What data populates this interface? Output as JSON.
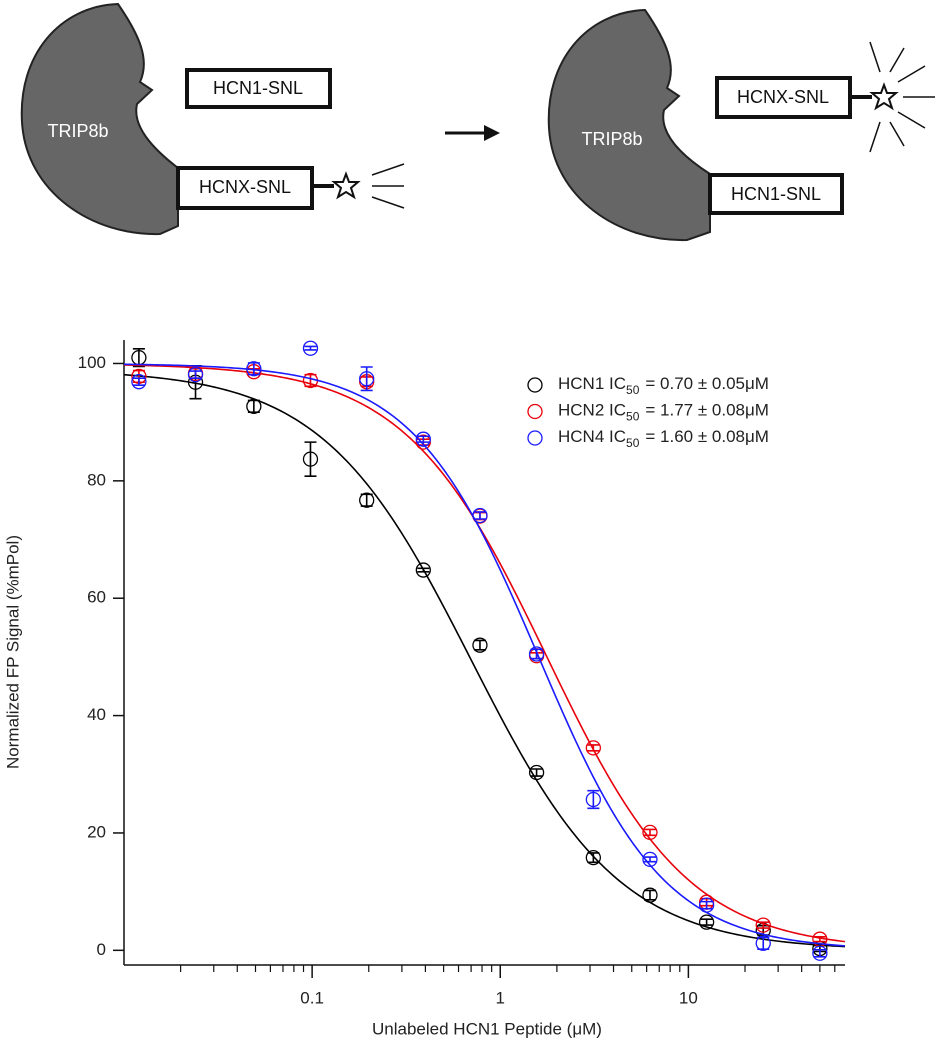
{
  "diagram": {
    "left": {
      "protein": "TRIP8b",
      "free_peptide": "HCN1-SNL",
      "bound_peptide": "HCNX-SNL"
    },
    "right": {
      "protein": "TRIP8b",
      "free_peptide": "HCNX-SNL",
      "bound_peptide": "HCN1-SNL"
    }
  },
  "chart_data": {
    "type": "scatter",
    "x_label": "Unlabeled HCN1 Peptide (μM)",
    "y_label": "Normalized FP Signal (%mPol)",
    "x_scale": "log",
    "xlim": [
      0.01,
      68
    ],
    "xticks": [
      0.1,
      1,
      10
    ],
    "xminorticks": [
      0.02,
      0.03,
      0.04,
      0.05,
      0.06,
      0.07,
      0.08,
      0.09,
      0.2,
      0.3,
      0.4,
      0.5,
      0.6,
      0.7,
      0.8,
      0.9,
      2,
      3,
      4,
      5,
      6,
      7,
      8,
      9,
      20,
      30,
      40,
      50,
      60
    ],
    "ylim": [
      -2.5,
      104
    ],
    "yticks": [
      0,
      20,
      40,
      60,
      80,
      100
    ],
    "legend": "upper right",
    "x": [
      0.012,
      0.024,
      0.049,
      0.098,
      0.195,
      0.39,
      0.78,
      1.56,
      3.125,
      6.25,
      12.5,
      25,
      50
    ],
    "series": [
      {
        "name": "HCN1 IC",
        "name_subscript": "50",
        "name_suffix": "= 0.70 ± 0.05μM",
        "color": "#000000",
        "values": [
          101.0,
          96.8,
          92.7,
          83.7,
          76.7,
          64.8,
          52.0,
          30.3,
          15.8,
          9.4,
          4.8,
          3.4,
          0.3
        ],
        "errors": [
          1.5,
          2.8,
          1,
          2.9,
          1,
          0.3,
          0.8,
          0.6,
          0.8,
          0.8,
          0.5,
          0.8,
          0.5
        ],
        "fit": {
          "top": 99,
          "bottom": 0,
          "ic50": 0.7,
          "hill": 1.1
        }
      },
      {
        "name": "HCN2 IC",
        "name_subscript": "50",
        "name_suffix": "= 1.77 ± 0.08μM",
        "color": "#e8000b",
        "values": [
          97.8,
          98.3,
          98.6,
          97.1,
          96.9,
          86.6,
          74.0,
          50.2,
          34.5,
          20.1,
          8.2,
          4.3,
          1.9
        ],
        "errors": [
          1,
          0.8,
          0.5,
          1,
          0.8,
          0.5,
          0.6,
          0.5,
          0.5,
          0.5,
          0.6,
          0.5,
          0.4
        ],
        "fit": {
          "top": 100,
          "bottom": 0,
          "ic50": 1.77,
          "hill": 1.15
        }
      },
      {
        "name": "HCN4 IC",
        "name_subscript": "50",
        "name_suffix": "= 1.60 ± 0.08μM",
        "color": "#1a1aff",
        "values": [
          96.9,
          98.1,
          99.1,
          102.6,
          97.4,
          87.1,
          74.1,
          50.5,
          25.7,
          15.5,
          7.7,
          1.2,
          -0.5
        ],
        "errors": [
          0.6,
          0.6,
          1,
          0.3,
          2,
          0.5,
          0.6,
          0.8,
          1.5,
          0.4,
          0.6,
          1,
          0.6
        ],
        "fit": {
          "top": 100,
          "bottom": 0,
          "ic50": 1.6,
          "hill": 1.3
        }
      }
    ]
  }
}
